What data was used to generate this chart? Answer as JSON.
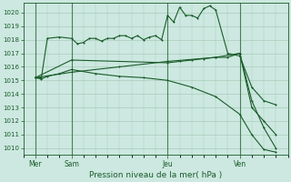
{
  "background_color": "#cce8e0",
  "grid_color": "#aaccbb",
  "line_color": "#1a5c2a",
  "title": "Pression niveau de la mer( hPa )",
  "ylim": [
    1009.5,
    1020.7
  ],
  "yticks": [
    1010,
    1011,
    1012,
    1013,
    1014,
    1015,
    1016,
    1017,
    1018,
    1019,
    1020
  ],
  "xlim": [
    0,
    22
  ],
  "xtick_labels": [
    "Mer",
    "Sam",
    "Jeu",
    "Ven"
  ],
  "xtick_positions": [
    1,
    4,
    12,
    18
  ],
  "vlines": [
    1,
    4,
    12,
    18
  ],
  "series": [
    {
      "x": [
        1,
        1.5,
        2,
        3,
        4,
        4.5,
        5,
        5.5,
        6,
        6.5,
        7,
        7.5,
        8,
        8.5,
        9,
        9.5,
        10,
        10.5,
        11,
        11.5,
        12,
        12.5,
        13,
        13.5,
        14,
        14.5,
        15,
        15.5,
        16,
        17,
        18,
        19,
        20,
        21
      ],
      "y": [
        1015.2,
        1015.2,
        1018.1,
        1018.2,
        1018.1,
        1017.7,
        1017.8,
        1018.1,
        1018.1,
        1017.9,
        1018.1,
        1018.1,
        1018.3,
        1018.3,
        1018.1,
        1018.3,
        1018.0,
        1018.2,
        1018.3,
        1018.0,
        1019.8,
        1019.3,
        1020.4,
        1019.8,
        1019.8,
        1019.6,
        1020.3,
        1020.5,
        1020.2,
        1017.0,
        1016.8,
        1014.5,
        1013.5,
        1013.2
      ]
    },
    {
      "x": [
        1,
        4,
        12,
        13,
        14,
        15,
        16,
        17,
        18,
        19,
        20,
        21
      ],
      "y": [
        1015.2,
        1016.5,
        1016.3,
        1016.4,
        1016.5,
        1016.6,
        1016.7,
        1016.7,
        1017.0,
        1013.0,
        1012.0,
        1011.0
      ]
    },
    {
      "x": [
        1,
        4,
        8,
        12,
        16,
        18,
        19,
        20,
        21
      ],
      "y": [
        1015.2,
        1015.6,
        1016.0,
        1016.4,
        1016.7,
        1017.0,
        1013.5,
        1011.5,
        1010.0
      ]
    },
    {
      "x": [
        1,
        1.5,
        2,
        3,
        4,
        6,
        8,
        10,
        12,
        14,
        16,
        18,
        19,
        20,
        21
      ],
      "y": [
        1015.2,
        1015.1,
        1015.3,
        1015.5,
        1015.8,
        1015.5,
        1015.3,
        1015.2,
        1015.0,
        1014.5,
        1013.8,
        1012.5,
        1011.0,
        1009.9,
        1009.7
      ]
    }
  ]
}
